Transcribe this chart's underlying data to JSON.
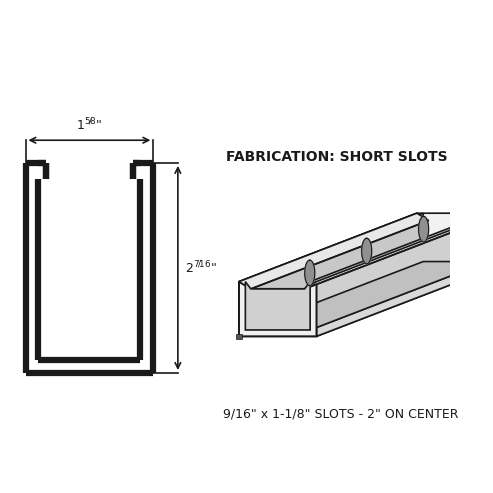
{
  "bg_color": "#ffffff",
  "line_color": "#1a1a1a",
  "title_text": "FABRICATION: SHORT SLOTS",
  "subtitle_text": "9/16\" x 1-1/8\" SLOTS - 2\" ON CENTER",
  "width_label": "1 5/8\"",
  "height_label": "2 7/16\"",
  "slot_spacing_label": "2\"",
  "fig_width": 4.93,
  "fig_height": 4.93,
  "dpi": 100,
  "face_colors": {
    "top_outer": "#f0f0f0",
    "top_inner": "#e0e0e0",
    "front_outer": "#ffffff",
    "front_inner": "#d8d8d8",
    "left_end": "#c0c0c0",
    "left_end_inner": "#b0b0b0",
    "slot_fill": "#a0a0a0"
  }
}
